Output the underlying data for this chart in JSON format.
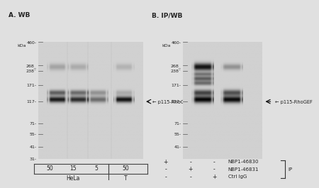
{
  "bg_color": "#e0e0e0",
  "gel_bg": "#d0d0d0",
  "title_A": "A. WB",
  "title_B": "B. IP/WB",
  "kda_label": "kDa",
  "marker_kda_A": [
    460,
    268,
    238,
    171,
    117,
    71,
    55,
    41,
    31
  ],
  "marker_labels_A": [
    "460-",
    "268_",
    "238¯",
    "171-",
    "117-",
    "71-",
    "55-",
    "41-",
    "31-"
  ],
  "marker_kda_B": [
    460,
    268,
    238,
    171,
    117,
    71,
    55,
    41
  ],
  "marker_labels_B": [
    "460-",
    "268_",
    "238¯",
    "171-",
    "117-",
    "71-",
    "55-",
    "41-"
  ],
  "annotation_A": "← p115-RhoGEF",
  "annotation_B": "← p115-RhoGEF",
  "sample_labels_A": [
    "50",
    "15",
    "5",
    "50"
  ],
  "row1_B": [
    "+",
    "-",
    "-",
    "NBP1-46830"
  ],
  "row2_B": [
    "-",
    "+",
    "-",
    "NBP1-46831"
  ],
  "row3_B": [
    "-",
    "-",
    "+",
    "Ctrl IgG"
  ],
  "ip_label": "IP",
  "text_color": "#222222"
}
